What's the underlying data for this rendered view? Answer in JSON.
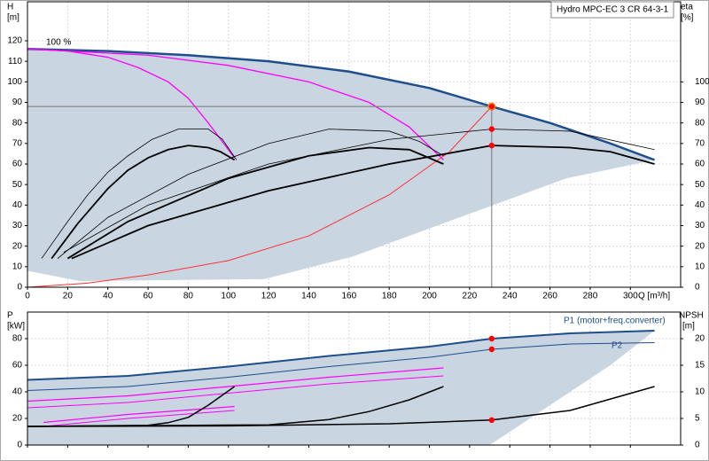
{
  "chart_data": [
    {
      "type": "line",
      "title": "Hydro MPC-EC 3 CR 64-3-1",
      "ylabel": "H",
      "yunit": "[m]",
      "y2label": "eta",
      "y2unit": "[%]",
      "xlabel": "Q [m³/h]",
      "annotation": "100 %",
      "xlim": [
        0,
        325
      ],
      "xticks": [
        0,
        20,
        40,
        60,
        80,
        100,
        120,
        140,
        160,
        180,
        200,
        220,
        240,
        260,
        280,
        300
      ],
      "ylim": [
        0,
        139
      ],
      "yticks": [
        0,
        10,
        20,
        30,
        40,
        50,
        60,
        70,
        80,
        90,
        100,
        110,
        120
      ],
      "y2lim": [
        0,
        139
      ],
      "y2ticks": [
        0,
        10,
        20,
        30,
        40,
        50,
        60,
        70,
        80,
        90,
        100
      ],
      "grid": true,
      "series": [
        {
          "kind": "area",
          "color": "#c9d5e1",
          "x": [
            0,
            40,
            80,
            120,
            160,
            200,
            231,
            260,
            290,
            312,
            268,
            215,
            162,
            118,
            26,
            0
          ],
          "values": [
            116,
            115,
            113,
            110,
            105,
            97,
            88,
            80,
            70,
            62,
            53,
            34,
            15,
            4,
            3,
            8
          ]
        },
        {
          "kind": "line",
          "color": "#1f4e8c",
          "width": 2.5,
          "x": [
            0,
            40,
            80,
            120,
            160,
            200,
            231,
            260,
            290,
            312
          ],
          "values": [
            116,
            115,
            113,
            110,
            105,
            97,
            88,
            80,
            70,
            62
          ]
        },
        {
          "kind": "line",
          "color": "#ff00ff",
          "width": 1.3,
          "x": [
            0,
            20,
            40,
            55,
            70,
            80,
            90,
            103
          ],
          "values": [
            116,
            115,
            112,
            107,
            100,
            92,
            80,
            63
          ]
        },
        {
          "kind": "line",
          "color": "#ff00ff",
          "width": 1.3,
          "x": [
            0,
            60,
            100,
            140,
            170,
            190,
            207
          ],
          "values": [
            116,
            113,
            108,
            100,
            90,
            78,
            62
          ]
        },
        {
          "kind": "line",
          "color": "#ff3030",
          "width": 1,
          "x": [
            0,
            30,
            60,
            100,
            140,
            180,
            210,
            231
          ],
          "values": [
            0,
            2,
            6,
            13,
            25,
            45,
            66,
            88
          ]
        },
        {
          "kind": "line",
          "color": "#000000",
          "width": 0.8,
          "axis": "y2",
          "x": [
            7,
            20,
            30,
            40,
            50,
            62,
            75,
            90,
            97,
            104
          ],
          "values": [
            14,
            32,
            45,
            56,
            64,
            72,
            77,
            77,
            72,
            62
          ]
        },
        {
          "kind": "line",
          "color": "#000000",
          "width": 1.8,
          "axis": "y2",
          "x": [
            12,
            25,
            40,
            50,
            60,
            70,
            80,
            90,
            96,
            103
          ],
          "values": [
            14,
            31,
            48,
            57,
            63,
            67,
            69,
            68,
            66,
            62
          ]
        },
        {
          "kind": "line",
          "color": "#000000",
          "width": 0.8,
          "axis": "y2",
          "x": [
            15,
            40,
            80,
            120,
            150,
            180,
            195,
            207
          ],
          "values": [
            14,
            34,
            55,
            70,
            77,
            76,
            71,
            64
          ]
        },
        {
          "kind": "line",
          "color": "#000000",
          "width": 1.8,
          "axis": "y2",
          "x": [
            20,
            50,
            100,
            140,
            170,
            190,
            207
          ],
          "values": [
            14,
            32,
            53,
            64,
            68,
            67,
            60
          ]
        },
        {
          "kind": "line",
          "color": "#000000",
          "width": 0.8,
          "axis": "y2",
          "x": [
            18,
            60,
            120,
            180,
            231,
            270,
            312
          ],
          "values": [
            17,
            40,
            60,
            72,
            77,
            76,
            67
          ]
        },
        {
          "kind": "line",
          "color": "#000000",
          "width": 1.8,
          "axis": "y2",
          "x": [
            22,
            60,
            120,
            180,
            231,
            270,
            290,
            312
          ],
          "values": [
            14,
            30,
            47,
            60,
            69,
            68,
            66,
            60
          ]
        },
        {
          "kind": "duty",
          "color": "#ffd700",
          "x": [
            231
          ],
          "values": [
            88
          ]
        },
        {
          "kind": "points",
          "color": "#ff0000",
          "axis": "y2",
          "x": [
            231,
            231,
            231
          ],
          "values": [
            88,
            77,
            69
          ]
        }
      ]
    },
    {
      "type": "line",
      "ylabel": "P",
      "yunit": "[kW]",
      "y2label": "NPSH",
      "y2unit": "[m]",
      "xlim": [
        0,
        325
      ],
      "xticks": [
        0,
        20,
        40,
        60,
        80,
        100,
        120,
        140,
        160,
        180,
        200,
        220,
        240,
        260,
        280,
        300
      ],
      "ylim": [
        0,
        100
      ],
      "yticks": [
        0,
        20,
        40,
        60,
        80
      ],
      "y2lim": [
        0,
        25
      ],
      "y2ticks": [
        0,
        5,
        10,
        15,
        20
      ],
      "grid": true,
      "series": [
        {
          "kind": "area",
          "color": "#c9d5e1",
          "x": [
            0,
            50,
            100,
            150,
            200,
            231,
            270,
            312,
            290,
            270,
            250,
            230,
            0
          ],
          "values": [
            49,
            52,
            59,
            67,
            74,
            80,
            84,
            86,
            60,
            40,
            20,
            0,
            0
          ]
        },
        {
          "kind": "line",
          "name": "P1 (motor+freq.converter)",
          "color": "#1f4e8c",
          "width": 2,
          "x": [
            0,
            50,
            100,
            150,
            200,
            231,
            270,
            312
          ],
          "values": [
            49,
            52,
            59,
            67,
            74,
            80,
            84,
            86
          ]
        },
        {
          "kind": "line",
          "name": "P2",
          "color": "#1f4e8c",
          "width": 1,
          "x": [
            0,
            50,
            100,
            150,
            200,
            231,
            270,
            312
          ],
          "values": [
            41,
            44,
            51,
            59,
            66,
            72,
            76,
            77
          ]
        },
        {
          "kind": "line",
          "color": "#ff00ff",
          "width": 1.2,
          "x": [
            0,
            50,
            100,
            150,
            207
          ],
          "values": [
            33,
            37,
            44,
            51,
            58
          ]
        },
        {
          "kind": "line",
          "color": "#ff00ff",
          "width": 1,
          "x": [
            0,
            50,
            100,
            150,
            207
          ],
          "values": [
            28,
            32,
            39,
            46,
            52
          ]
        },
        {
          "kind": "line",
          "color": "#ff00ff",
          "width": 1.2,
          "x": [
            8,
            50,
            103
          ],
          "values": [
            17,
            23,
            29
          ]
        },
        {
          "kind": "line",
          "color": "#ff00ff",
          "width": 1,
          "x": [
            8,
            50,
            103
          ],
          "values": [
            14,
            20,
            26
          ]
        },
        {
          "kind": "line",
          "color": "#000000",
          "width": 1.5,
          "axis": "y2",
          "x": [
            0,
            60,
            70,
            80,
            90,
            103
          ],
          "values": [
            3.5,
            3.7,
            4.2,
            5.2,
            7.5,
            11
          ]
        },
        {
          "kind": "line",
          "color": "#000000",
          "width": 1.5,
          "axis": "y2",
          "x": [
            0,
            120,
            150,
            170,
            190,
            207
          ],
          "values": [
            3.5,
            3.8,
            4.8,
            6.3,
            8.5,
            11
          ]
        },
        {
          "kind": "line",
          "color": "#000000",
          "width": 1.5,
          "axis": "y2",
          "x": [
            0,
            100,
            180,
            231,
            270,
            312
          ],
          "values": [
            3.5,
            3.6,
            4,
            4.7,
            6.5,
            11
          ]
        },
        {
          "kind": "points",
          "color": "#ff0000",
          "x": [
            231,
            231
          ],
          "values": [
            80,
            72
          ]
        },
        {
          "kind": "points",
          "color": "#ff0000",
          "axis": "y2",
          "x": [
            231
          ],
          "values": [
            4.7
          ]
        }
      ]
    }
  ]
}
